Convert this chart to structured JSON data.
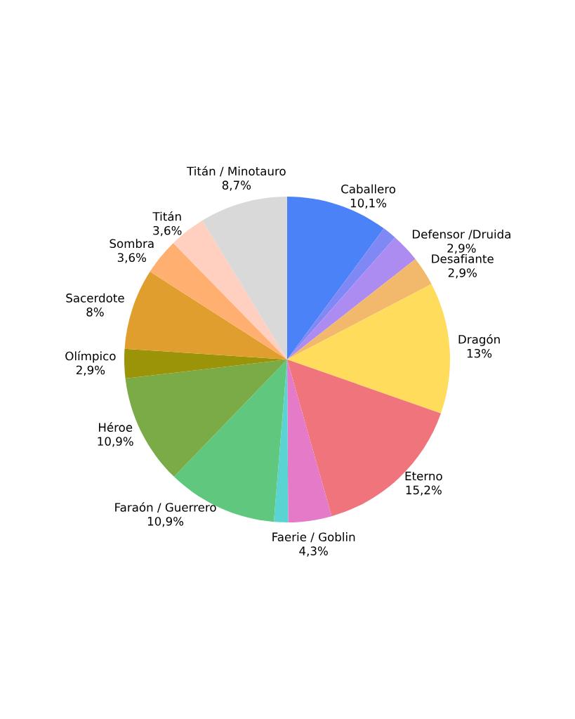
{
  "chart_data": {
    "type": "pie",
    "categories": [
      "Caballero",
      null,
      "Defensor /Druida",
      "Desafiante",
      "Dragón",
      "Eterno",
      "Faerie / Goblin",
      null,
      "Faraón / Guerrero",
      "Héroe",
      "Olímpico",
      "Sacerdote",
      "Sombra",
      "Titán",
      "Titán / Minotauro"
    ],
    "values": [
      10.1,
      1.4,
      2.9,
      2.9,
      13,
      15.2,
      4.3,
      1.4,
      10.9,
      10.9,
      2.9,
      8,
      3.6,
      3.6,
      8.7
    ],
    "value_labels": [
      "10,1%",
      null,
      "2,9%",
      "2,9%",
      "13%",
      "15,2%",
      "4,3%",
      null,
      "10,9%",
      "10,9%",
      "2,9%",
      "8%",
      "3,6%",
      "3,6%",
      "8,7%"
    ],
    "colors": [
      "#4c82f7",
      "#7f88f5",
      "#ad8cf2",
      "#f2b86b",
      "#ffdc5c",
      "#ef747c",
      "#e57bc8",
      "#5ad3d3",
      "#5fc77e",
      "#7bab47",
      "#9b9308",
      "#e09e2e",
      "#ffb070",
      "#ffcfc0",
      "#d9d9d9"
    ],
    "legend": false
  }
}
